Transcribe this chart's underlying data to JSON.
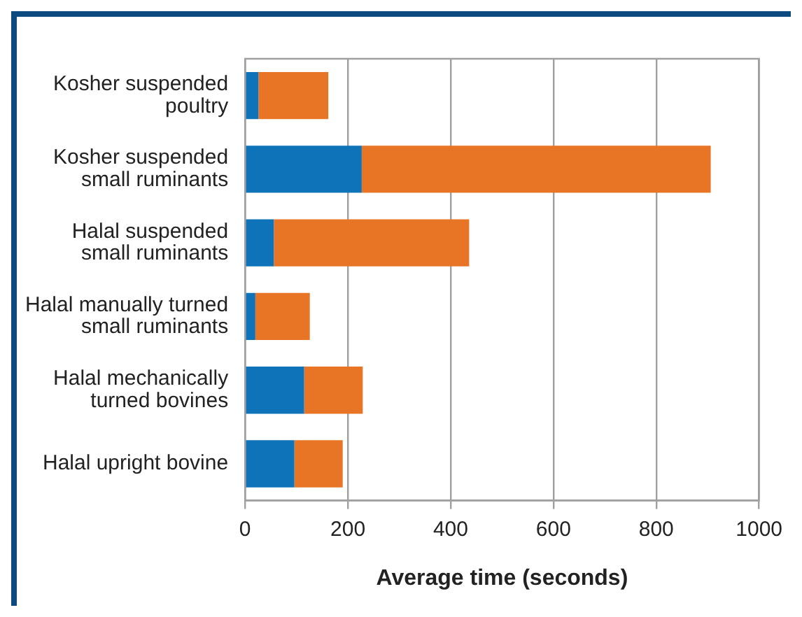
{
  "chart_data": {
    "type": "bar",
    "orientation": "horizontal",
    "stacked": true,
    "xlabel": "Average time (seconds)",
    "categories": [
      "Kosher suspended poultry",
      "Kosher suspended small ruminants",
      "Halal suspended small ruminants",
      "Halal manually turned small ruminants",
      "Halal mechanically turned bovines",
      "Halal upright bovine"
    ],
    "series": [
      {
        "color": "#0f73b9",
        "values": [
          26,
          227,
          56,
          20,
          115,
          96
        ]
      },
      {
        "color": "#e87425",
        "values": [
          136,
          679,
          380,
          106,
          114,
          94
        ]
      }
    ],
    "xlim": [
      0,
      1000
    ],
    "xticks": [
      0,
      200,
      400,
      600,
      800,
      1000
    ],
    "grid": "x",
    "legend": false
  }
}
